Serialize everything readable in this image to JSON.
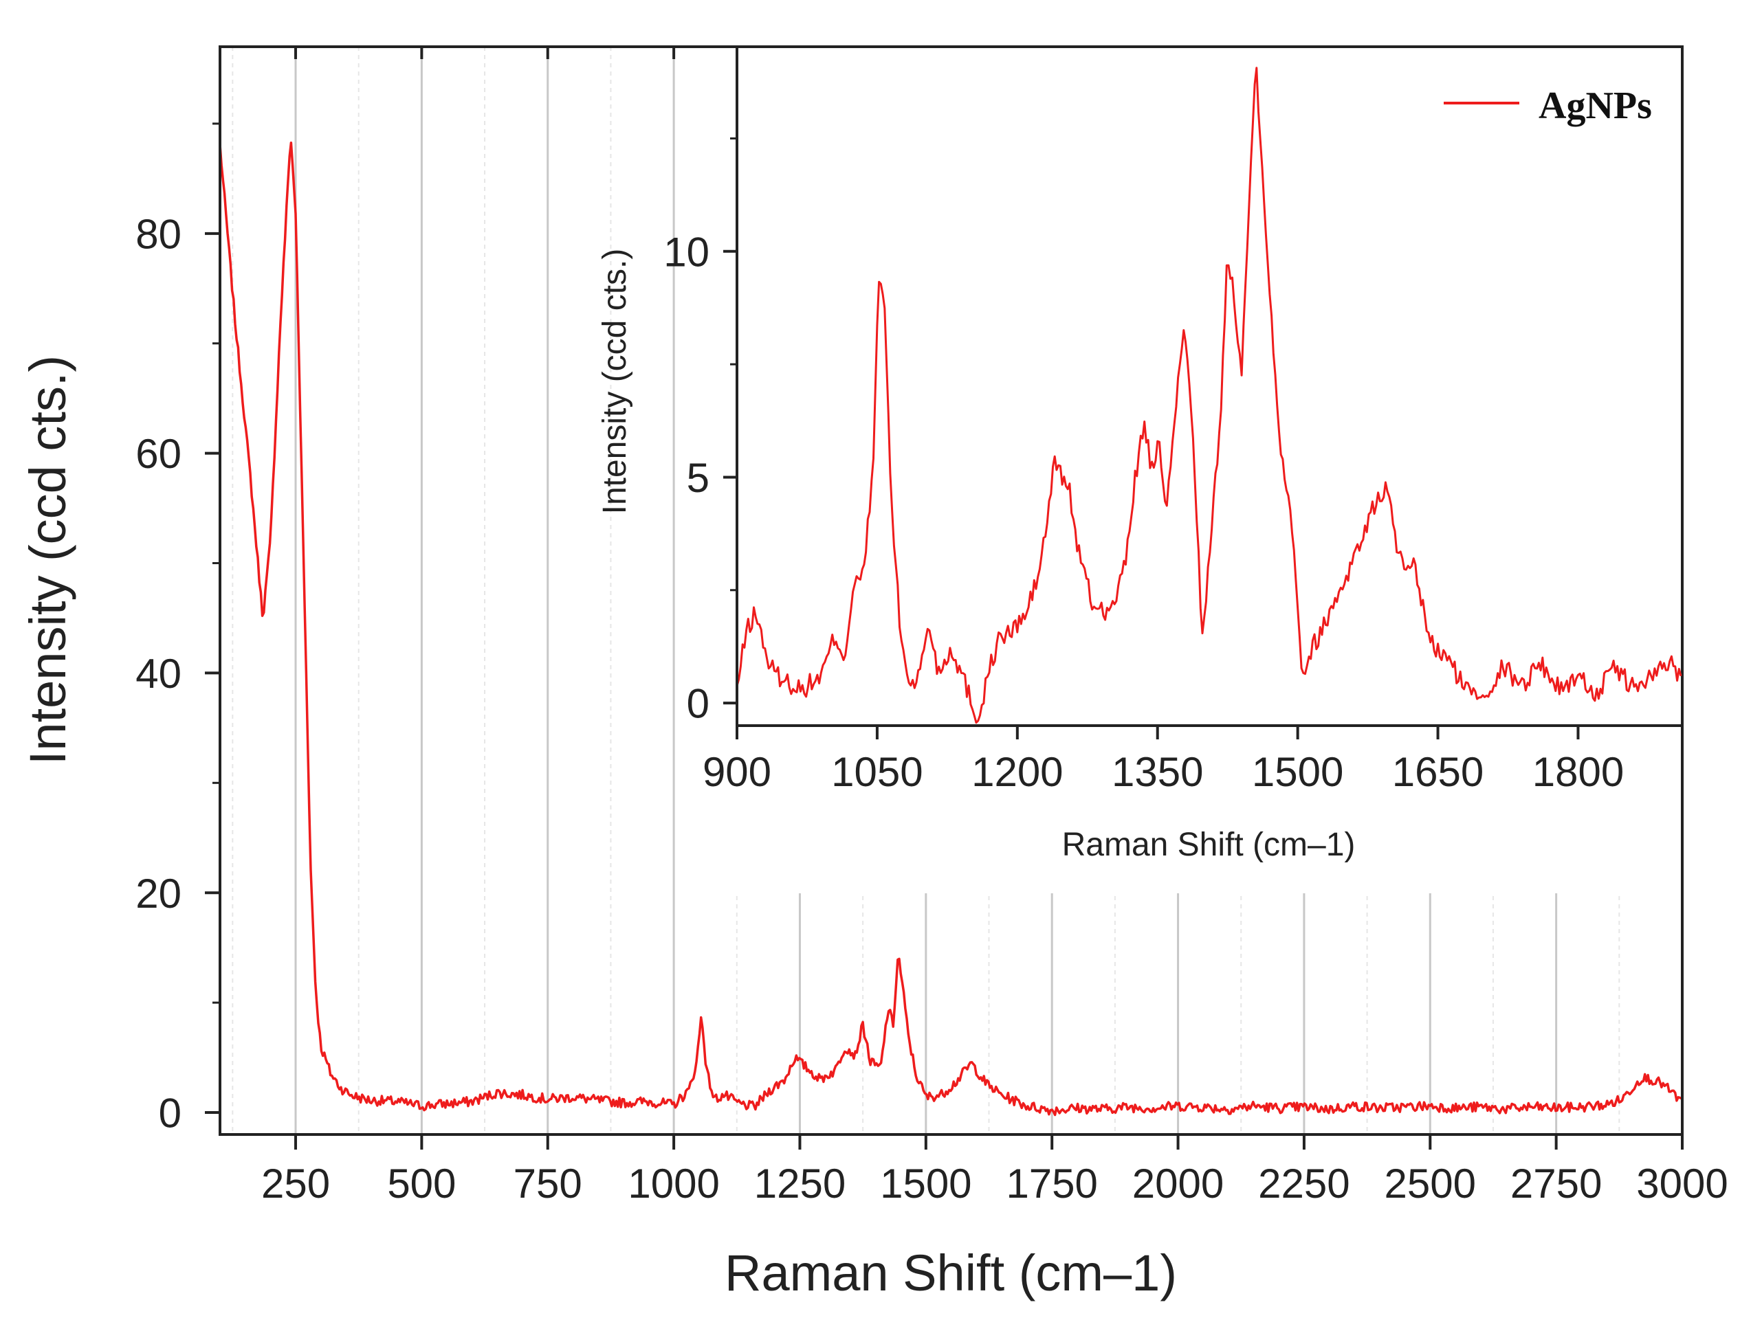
{
  "colors": {
    "series": "#ee1c1c",
    "grid": "#c8c8c8",
    "minor_grid": "#e6e6e6",
    "axis": "#222222"
  },
  "legend": {
    "label": "AgNPs",
    "placement": "top-right"
  },
  "chart_data": [
    {
      "type": "line",
      "name": "main",
      "xlabel": "Raman Shift (cm–1)",
      "ylabel": "Intensity (ccd cts.)",
      "xlim": [
        100,
        3000
      ],
      "ylim": [
        -2,
        97
      ],
      "xticks": [
        "250",
        "500",
        "750",
        "1000",
        "1250",
        "1500",
        "1750",
        "2000",
        "2250",
        "2500",
        "2750",
        "3000"
      ],
      "yticks": [
        "0",
        "20",
        "40",
        "60",
        "80"
      ],
      "grid": true,
      "series": [
        {
          "name": "AgNPs",
          "x": [
            100,
            130,
            160,
            185,
            200,
            220,
            240,
            250,
            260,
            270,
            280,
            290,
            300,
            320,
            340,
            360,
            380,
            400,
            450,
            500,
            550,
            600,
            650,
            700,
            750,
            800,
            850,
            900,
            950,
            1000,
            1030,
            1045,
            1055,
            1065,
            1080,
            1100,
            1130,
            1160,
            1190,
            1220,
            1240,
            1260,
            1290,
            1320,
            1340,
            1360,
            1375,
            1390,
            1410,
            1425,
            1435,
            1445,
            1455,
            1465,
            1480,
            1500,
            1530,
            1560,
            1590,
            1620,
            1650,
            1700,
            1750,
            1800,
            1850,
            1900,
            1950,
            2000,
            2050,
            2100,
            2150,
            2200,
            2250,
            2300,
            2350,
            2400,
            2450,
            2500,
            2550,
            2600,
            2650,
            2700,
            2750,
            2800,
            2850,
            2880,
            2900,
            2920,
            2940,
            2960,
            2980,
            3000
          ],
          "y": [
            88,
            72,
            58,
            45,
            52,
            72,
            89,
            82,
            62,
            42,
            22,
            11,
            6,
            3.5,
            2.2,
            1.6,
            1.3,
            1.1,
            1.0,
            0.6,
            0.8,
            1.0,
            1.8,
            1.6,
            1.2,
            1.4,
            1.1,
            0.9,
            1.0,
            0.7,
            2.0,
            4.5,
            9.0,
            3.8,
            1.2,
            1.6,
            0.8,
            0.5,
            2.0,
            3.0,
            5.0,
            4.2,
            3.0,
            3.8,
            6.0,
            5.2,
            8.0,
            4.6,
            4.0,
            9.5,
            8.0,
            14.5,
            11.0,
            7.0,
            3.5,
            1.4,
            1.6,
            2.8,
            4.5,
            2.6,
            1.6,
            0.6,
            0.2,
            0.4,
            0.3,
            0.5,
            0.4,
            0.6,
            0.5,
            0.3,
            0.6,
            0.4,
            0.5,
            0.3,
            0.6,
            0.4,
            0.5,
            0.6,
            0.4,
            0.5,
            0.3,
            0.5,
            0.4,
            0.5,
            0.7,
            1.2,
            2.2,
            3.2,
            3.0,
            2.6,
            1.8,
            0.9
          ]
        }
      ]
    },
    {
      "type": "line",
      "name": "inset",
      "xlabel": "Raman Shift (cm–1)",
      "ylabel": "Intensity (ccd cts.)",
      "xlim": [
        900,
        1910
      ],
      "ylim": [
        -0.5,
        14.5
      ],
      "xticks": [
        "900",
        "1050",
        "1200",
        "1350",
        "1500",
        "1650",
        "1800"
      ],
      "yticks": [
        "0",
        "5",
        "10"
      ],
      "grid": false,
      "series": [
        {
          "name": "AgNPs",
          "x": [
            900,
            910,
            920,
            935,
            950,
            970,
            990,
            1005,
            1015,
            1025,
            1035,
            1045,
            1052,
            1058,
            1065,
            1075,
            1085,
            1095,
            1105,
            1115,
            1130,
            1145,
            1158,
            1168,
            1180,
            1195,
            1210,
            1222,
            1232,
            1240,
            1248,
            1255,
            1265,
            1280,
            1300,
            1315,
            1325,
            1335,
            1345,
            1352,
            1360,
            1368,
            1378,
            1388,
            1398,
            1408,
            1418,
            1425,
            1432,
            1440,
            1448,
            1455,
            1462,
            1470,
            1480,
            1495,
            1505,
            1515,
            1530,
            1545,
            1560,
            1575,
            1585,
            1595,
            1605,
            1615,
            1625,
            1635,
            1645,
            1660,
            1680,
            1700,
            1720,
            1740,
            1760,
            1780,
            1800,
            1820,
            1840,
            1860,
            1880,
            1900,
            1910
          ],
          "y": [
            0.3,
            1.6,
            2.0,
            0.8,
            0.5,
            0.3,
            0.6,
            1.5,
            1.0,
            2.6,
            2.8,
            5.0,
            9.4,
            8.8,
            4.5,
            1.5,
            0.4,
            0.6,
            1.8,
            0.7,
            1.2,
            0.4,
            -0.4,
            0.6,
            1.4,
            1.6,
            2.0,
            2.8,
            4.0,
            5.4,
            5.0,
            4.8,
            3.4,
            2.2,
            2.0,
            3.0,
            4.8,
            6.2,
            5.0,
            5.8,
            4.2,
            6.2,
            8.4,
            6.0,
            1.4,
            3.8,
            6.6,
            10.0,
            9.0,
            7.4,
            11.0,
            14.3,
            12.0,
            9.0,
            6.0,
            3.8,
            0.6,
            1.2,
            1.8,
            2.5,
            3.2,
            4.0,
            4.5,
            4.8,
            3.6,
            2.8,
            3.0,
            2.0,
            1.2,
            1.0,
            0.3,
            0.2,
            0.8,
            0.4,
            0.9,
            0.3,
            0.6,
            0.2,
            0.8,
            0.3,
            0.6,
            0.9,
            0.6
          ]
        }
      ]
    }
  ]
}
